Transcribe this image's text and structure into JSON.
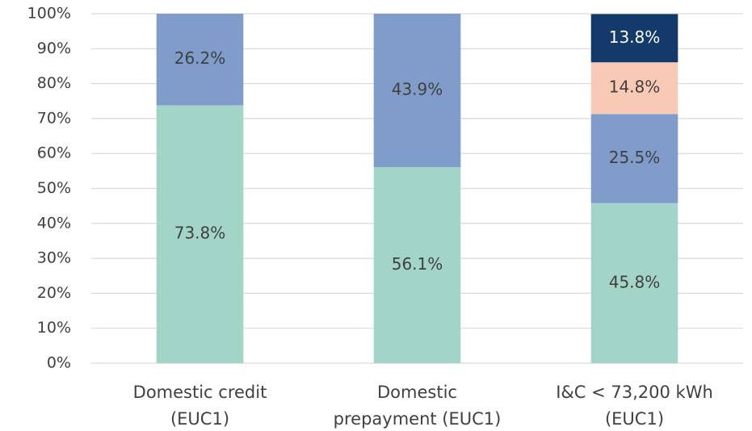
{
  "chart_data": {
    "type": "stacked_bar",
    "categories": [
      [
        "Domestic credit",
        "(EUC1)"
      ],
      [
        "Domestic",
        "prepayment (EUC1)"
      ],
      [
        "I&C < 73,200 kWh",
        "(EUC1)"
      ]
    ],
    "series": [
      {
        "color": "#a2d5c8",
        "values": [
          73.8,
          56.1,
          45.8
        ],
        "value_labels": [
          "73.8%",
          "56.1%",
          "45.8%"
        ]
      },
      {
        "color": "#7f9ccb",
        "values": [
          26.2,
          43.9,
          25.5
        ],
        "value_labels": [
          "26.2%",
          "43.9%",
          "25.5%"
        ]
      },
      {
        "color": "#f8c9b5",
        "values": [
          null,
          null,
          14.8
        ],
        "value_labels": [
          null,
          null,
          "14.8%"
        ]
      },
      {
        "color": "#143a6c",
        "values": [
          null,
          null,
          13.8
        ],
        "value_labels": [
          null,
          null,
          "13.8%"
        ]
      }
    ],
    "ylim": [
      0,
      100
    ],
    "yticks": [
      {
        "value": 0,
        "label": "0%"
      },
      {
        "value": 10,
        "label": "10%"
      },
      {
        "value": 20,
        "label": "20%"
      },
      {
        "value": 30,
        "label": "30%"
      },
      {
        "value": 40,
        "label": "40%"
      },
      {
        "value": 50,
        "label": "50%"
      },
      {
        "value": 60,
        "label": "60%"
      },
      {
        "value": 70,
        "label": "70%"
      },
      {
        "value": 80,
        "label": "80%"
      },
      {
        "value": 90,
        "label": "90%"
      },
      {
        "value": 100,
        "label": "100%"
      }
    ],
    "grid": true
  }
}
